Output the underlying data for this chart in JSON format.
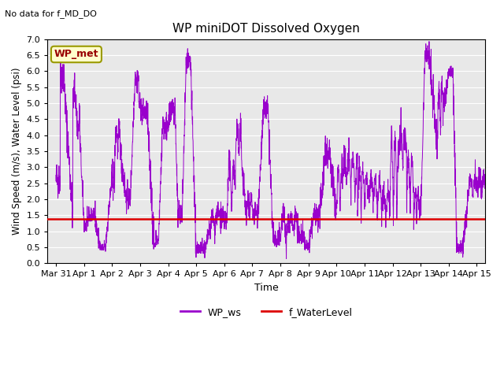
{
  "title": "WP miniDOT Dissolved Oxygen",
  "no_data_text": "No data for f_MD_DO",
  "xlabel": "Time",
  "ylabel": "Wind Speed (m/s), Water Level (psi)",
  "ylim": [
    0.0,
    7.0
  ],
  "yticks": [
    0.0,
    0.5,
    1.0,
    1.5,
    2.0,
    2.5,
    3.0,
    3.5,
    4.0,
    4.5,
    5.0,
    5.5,
    6.0,
    6.5,
    7.0
  ],
  "bg_color": "#e8e8e8",
  "wp_ws_color": "#9900cc",
  "f_wl_color": "#dd0000",
  "legend_box_facecolor": "#ffffcc",
  "legend_box_edgecolor": "#999900",
  "legend_box_text": "WP_met",
  "legend_box_text_color": "#990000",
  "f_wl_value": 1.38,
  "xtick_labels": [
    "Mar 31",
    "Apr 1",
    "Apr 2",
    "Apr 3",
    "Apr 4",
    "Apr 5",
    "Apr 6",
    "Apr 7",
    "Apr 8",
    "Apr 9",
    "Apr 10",
    "Apr 11",
    "Apr 12",
    "Apr 13",
    "Apr 14",
    "Apr 15"
  ],
  "num_points": 3000
}
